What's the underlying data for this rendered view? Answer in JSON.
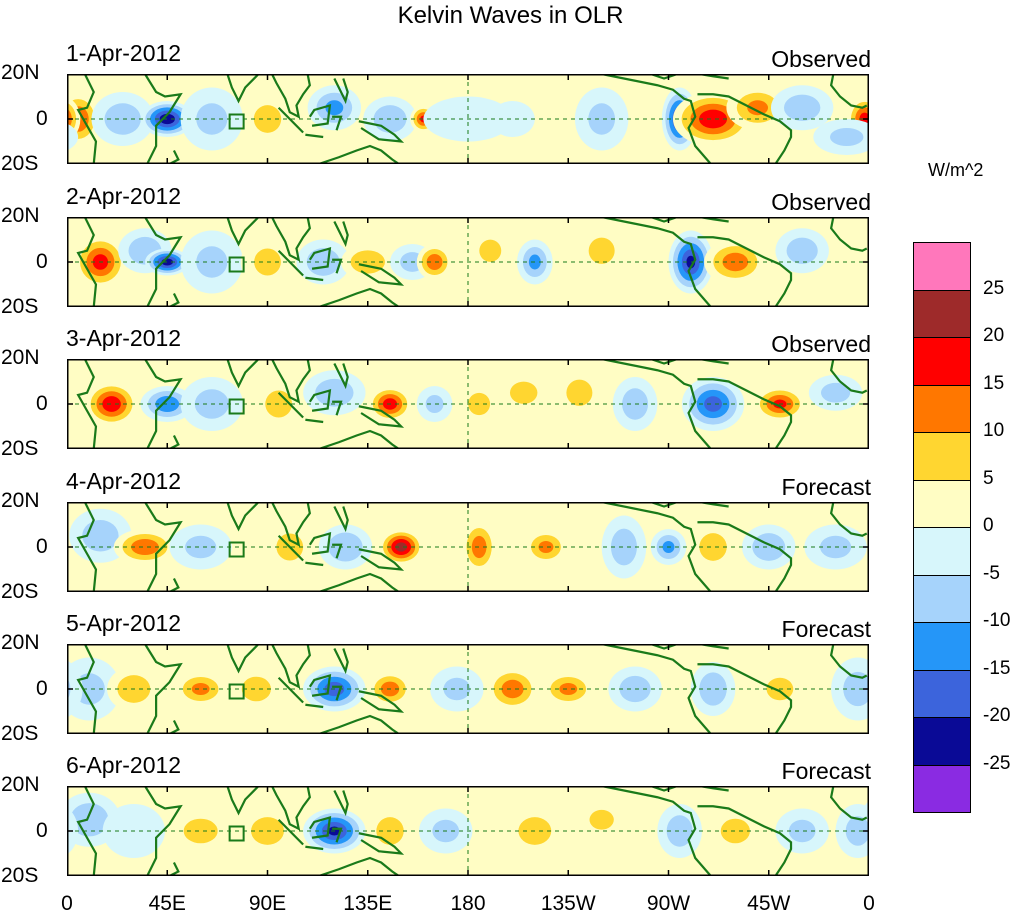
{
  "title": "Kelvin Waves in OLR",
  "colorbar": {
    "units": "W/m^2",
    "levels": [
      "25",
      "20",
      "15",
      "10",
      "5",
      "0",
      "-5",
      "-10",
      "-15",
      "-20",
      "-25"
    ],
    "colors": [
      "#ff77bb",
      "#9e2a2a",
      "#ff0000",
      "#ff7700",
      "#ffd630",
      "#fffdc4",
      "#d7f6fb",
      "#a6d3fb",
      "#2596f8",
      "#3c64dc",
      "#0a0a96",
      "#8a2be2"
    ]
  },
  "lat_labels": {
    "north": "20N",
    "equator": "0",
    "south": "20S"
  },
  "lon_labels": [
    "0",
    "45E",
    "90E",
    "135E",
    "180",
    "135W",
    "90W",
    "45W",
    "0"
  ],
  "panels": [
    {
      "date": "1-Apr-2012",
      "type": "Observed"
    },
    {
      "date": "2-Apr-2012",
      "type": "Observed"
    },
    {
      "date": "3-Apr-2012",
      "type": "Observed"
    },
    {
      "date": "4-Apr-2012",
      "type": "Forecast"
    },
    {
      "date": "5-Apr-2012",
      "type": "Forecast"
    },
    {
      "date": "6-Apr-2012",
      "type": "Forecast"
    }
  ],
  "map_data": {
    "lon_range": [
      0,
      360
    ],
    "lat_range": [
      -20,
      20
    ],
    "anomalies": [
      [
        [
          5,
          0,
          14,
          10,
          12
        ],
        [
          25,
          0,
          -7,
          14,
          12
        ],
        [
          45,
          0,
          -23,
          12,
          8
        ],
        [
          65,
          0,
          -5,
          14,
          14
        ],
        [
          90,
          0,
          8,
          10,
          10
        ],
        [
          120,
          5,
          -10,
          12,
          10
        ],
        [
          145,
          0,
          -8,
          12,
          10
        ],
        [
          160,
          0,
          15,
          6,
          6
        ],
        [
          180,
          0,
          -4,
          20,
          10
        ],
        [
          200,
          0,
          -3,
          10,
          8
        ],
        [
          240,
          0,
          -5,
          12,
          14
        ],
        [
          275,
          0,
          -20,
          8,
          14
        ],
        [
          290,
          0,
          18,
          18,
          12
        ],
        [
          310,
          5,
          10,
          14,
          10
        ],
        [
          330,
          5,
          -7,
          14,
          10
        ],
        [
          358,
          0,
          16,
          8,
          10
        ],
        [
          350,
          -8,
          -5,
          15,
          8
        ]
      ],
      [
        [
          15,
          0,
          16,
          12,
          12
        ],
        [
          35,
          5,
          -8,
          12,
          10
        ],
        [
          45,
          0,
          -22,
          10,
          6
        ],
        [
          65,
          0,
          -5,
          14,
          14
        ],
        [
          90,
          0,
          5,
          12,
          12
        ],
        [
          115,
          0,
          -8,
          12,
          10
        ],
        [
          135,
          0,
          9,
          12,
          8
        ],
        [
          155,
          0,
          -6,
          10,
          8
        ],
        [
          165,
          0,
          13,
          8,
          8
        ],
        [
          190,
          5,
          8,
          8,
          8
        ],
        [
          210,
          0,
          -10,
          8,
          10
        ],
        [
          240,
          5,
          7,
          10,
          10
        ],
        [
          280,
          0,
          -20,
          10,
          14
        ],
        [
          300,
          0,
          12,
          14,
          10
        ],
        [
          330,
          5,
          -7,
          12,
          10
        ]
      ],
      [
        [
          20,
          0,
          18,
          12,
          10
        ],
        [
          45,
          0,
          -13,
          12,
          8
        ],
        [
          65,
          0,
          -6,
          14,
          12
        ],
        [
          95,
          0,
          5,
          12,
          12
        ],
        [
          120,
          5,
          -8,
          14,
          10
        ],
        [
          145,
          0,
          17,
          10,
          8
        ],
        [
          165,
          0,
          -5,
          8,
          8
        ],
        [
          185,
          0,
          8,
          8,
          8
        ],
        [
          205,
          5,
          8,
          10,
          8
        ],
        [
          230,
          5,
          7,
          10,
          10
        ],
        [
          255,
          0,
          -7,
          10,
          12
        ],
        [
          290,
          0,
          -16,
          14,
          12
        ],
        [
          320,
          0,
          15,
          12,
          8
        ],
        [
          345,
          5,
          -6,
          12,
          8
        ]
      ],
      [
        [
          15,
          5,
          -7,
          14,
          12
        ],
        [
          35,
          0,
          13,
          14,
          8
        ],
        [
          60,
          0,
          -5,
          14,
          10
        ],
        [
          100,
          0,
          5,
          12,
          12
        ],
        [
          125,
          0,
          -9,
          12,
          10
        ],
        [
          150,
          0,
          22,
          10,
          8
        ],
        [
          185,
          0,
          12,
          8,
          12
        ],
        [
          215,
          0,
          10,
          10,
          8
        ],
        [
          250,
          0,
          -7,
          10,
          14
        ],
        [
          270,
          0,
          -10,
          8,
          8
        ],
        [
          290,
          0,
          8,
          10,
          10
        ],
        [
          315,
          0,
          -8,
          12,
          10
        ],
        [
          345,
          0,
          -5,
          14,
          10
        ]
      ],
      [
        [
          10,
          0,
          -5,
          14,
          14
        ],
        [
          30,
          0,
          8,
          12,
          10
        ],
        [
          60,
          0,
          10,
          12,
          8
        ],
        [
          85,
          0,
          6,
          12,
          10
        ],
        [
          120,
          0,
          -17,
          14,
          10
        ],
        [
          145,
          0,
          12,
          10,
          8
        ],
        [
          175,
          0,
          -5,
          12,
          10
        ],
        [
          200,
          0,
          12,
          12,
          10
        ],
        [
          225,
          0,
          10,
          12,
          8
        ],
        [
          255,
          0,
          -7,
          12,
          10
        ],
        [
          290,
          0,
          -8,
          10,
          12
        ],
        [
          320,
          0,
          5,
          12,
          10
        ],
        [
          355,
          0,
          -6,
          12,
          14
        ]
      ],
      [
        [
          10,
          5,
          -8,
          14,
          12
        ],
        [
          30,
          0,
          -4,
          14,
          12
        ],
        [
          60,
          0,
          6,
          14,
          10
        ],
        [
          90,
          0,
          8,
          12,
          10
        ],
        [
          120,
          0,
          -20,
          14,
          10
        ],
        [
          145,
          0,
          8,
          10,
          10
        ],
        [
          170,
          0,
          -5,
          12,
          10
        ],
        [
          210,
          0,
          8,
          12,
          10
        ],
        [
          240,
          5,
          6,
          10,
          8
        ],
        [
          275,
          0,
          -7,
          10,
          12
        ],
        [
          300,
          0,
          6,
          12,
          10
        ],
        [
          330,
          0,
          -5,
          12,
          10
        ],
        [
          355,
          0,
          -6,
          10,
          12
        ]
      ]
    ]
  }
}
